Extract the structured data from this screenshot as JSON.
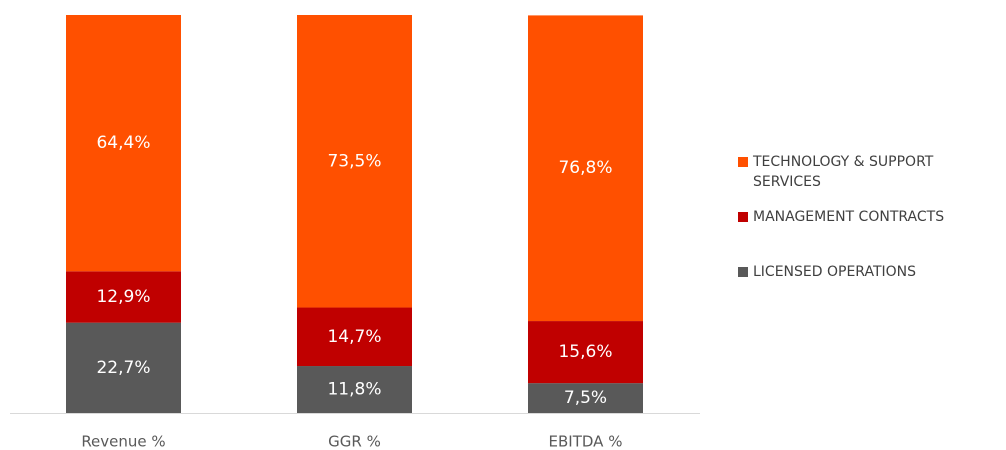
{
  "chart_data": {
    "type": "stacked_bar",
    "categories": [
      "Revenue %",
      "GGR %",
      "EBITDA %"
    ],
    "series": [
      {
        "name": "LICENSED OPERATIONS",
        "color": "#595959",
        "values": [
          22.7,
          11.8,
          7.5
        ],
        "value_labels": [
          "22,7%",
          "11,8%",
          "7,5%"
        ]
      },
      {
        "name": "MANAGEMENT CONTRACTS",
        "color": "#c00000",
        "values": [
          12.9,
          14.7,
          15.6
        ],
        "value_labels": [
          "12,9%",
          "14,7%",
          "15,6%"
        ]
      },
      {
        "name": "TECHNOLOGY & SUPPORT SERVICES",
        "color": "#ff5000",
        "values": [
          64.4,
          73.5,
          76.8
        ],
        "value_labels": [
          "64,4%",
          "73,5%",
          "76,8%"
        ]
      }
    ],
    "ylim": [
      0,
      100
    ],
    "legend": "right"
  }
}
